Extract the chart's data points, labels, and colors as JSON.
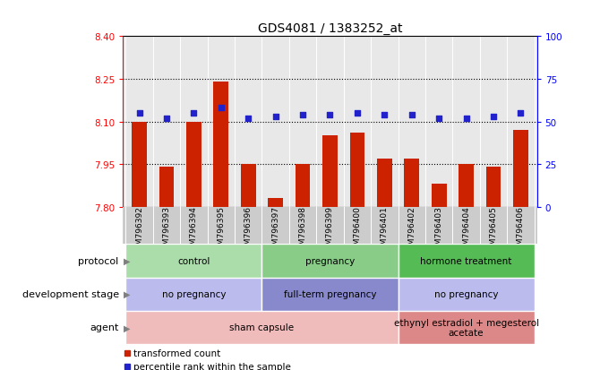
{
  "title": "GDS4081 / 1383252_at",
  "samples": [
    "GSM796392",
    "GSM796393",
    "GSM796394",
    "GSM796395",
    "GSM796396",
    "GSM796397",
    "GSM796398",
    "GSM796399",
    "GSM796400",
    "GSM796401",
    "GSM796402",
    "GSM796403",
    "GSM796404",
    "GSM796405",
    "GSM796406"
  ],
  "bar_values": [
    8.1,
    7.94,
    8.1,
    8.24,
    7.95,
    7.83,
    7.95,
    8.05,
    8.06,
    7.97,
    7.97,
    7.88,
    7.95,
    7.94,
    8.07
  ],
  "dot_values": [
    55,
    52,
    55,
    58,
    52,
    53,
    54,
    54,
    55,
    54,
    54,
    52,
    52,
    53,
    55
  ],
  "ylim_left": [
    7.8,
    8.4
  ],
  "ylim_right": [
    0,
    100
  ],
  "yticks_left": [
    7.8,
    7.95,
    8.1,
    8.25,
    8.4
  ],
  "yticks_right": [
    0,
    25,
    50,
    75,
    100
  ],
  "bar_color": "#cc2200",
  "dot_color": "#2222cc",
  "plot_bg_color": "#e8e8e8",
  "xtick_bg_color": "#cccccc",
  "protocol_groups": [
    {
      "label": "control",
      "start": 0,
      "end": 4,
      "color": "#aaddaa"
    },
    {
      "label": "pregnancy",
      "start": 5,
      "end": 9,
      "color": "#88cc88"
    },
    {
      "label": "hormone treatment",
      "start": 10,
      "end": 14,
      "color": "#55bb55"
    }
  ],
  "dev_stage_groups": [
    {
      "label": "no pregnancy",
      "start": 0,
      "end": 4,
      "color": "#bbbbee"
    },
    {
      "label": "full-term pregnancy",
      "start": 5,
      "end": 9,
      "color": "#8888cc"
    },
    {
      "label": "no pregnancy",
      "start": 10,
      "end": 14,
      "color": "#bbbbee"
    }
  ],
  "agent_groups": [
    {
      "label": "sham capsule",
      "start": 0,
      "end": 9,
      "color": "#f0bbbb"
    },
    {
      "label": "ethynyl estradiol + megesterol\nacetate",
      "start": 10,
      "end": 14,
      "color": "#dd8888"
    }
  ],
  "row_labels": [
    "protocol",
    "development stage",
    "agent"
  ],
  "legend_items": [
    {
      "label": "transformed count",
      "color": "#cc2200"
    },
    {
      "label": "percentile rank within the sample",
      "color": "#2222cc"
    }
  ],
  "dotted_lines": [
    7.95,
    8.1,
    8.25
  ]
}
